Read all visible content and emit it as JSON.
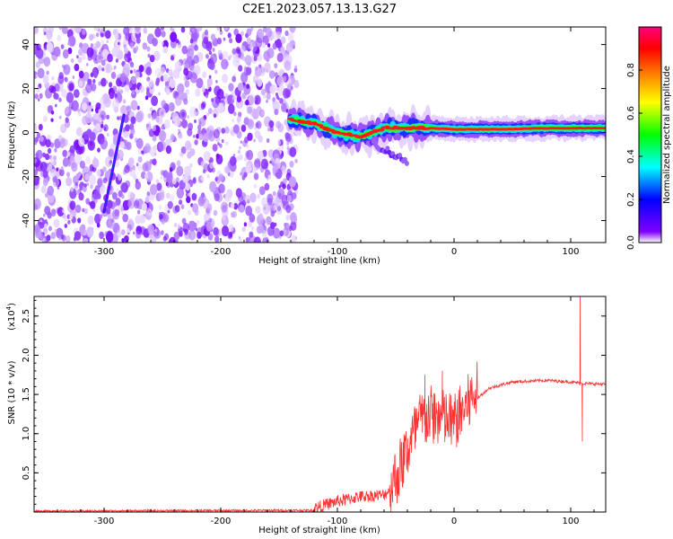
{
  "title": "C2E1.2023.057.13.13.G27",
  "chart_data": [
    {
      "type": "heatmap",
      "xlabel": "Height of straight line (km)",
      "ylabel": "Frequency (Hz)",
      "xlim": [
        -360,
        130
      ],
      "ylim": [
        -50,
        48
      ],
      "x_ticks": [
        -300,
        -200,
        -100,
        0,
        100
      ],
      "y_ticks": [
        -40,
        -20,
        0,
        20,
        40
      ],
      "colorbar": {
        "label": "Normalized spectral amplitude",
        "range": [
          0,
          1
        ],
        "ticks": [
          "0.0",
          "0.2",
          "0.4",
          "0.6",
          "0.8"
        ],
        "colors": [
          "#ffffff",
          "#8000ff",
          "#0000ff",
          "#00ffff",
          "#00ff00",
          "#ffff00",
          "#ff8000",
          "#ff0000",
          "#ff0080"
        ]
      },
      "noise_region_x": [
        -360,
        -135
      ],
      "carrier_track": [
        {
          "x": -140,
          "y": 6
        },
        {
          "x": -120,
          "y": 4
        },
        {
          "x": -100,
          "y": 0
        },
        {
          "x": -80,
          "y": -2
        },
        {
          "x": -60,
          "y": 2
        },
        {
          "x": -40,
          "y": 2
        },
        {
          "x": -20,
          "y": 2
        },
        {
          "x": 0,
          "y": 1.5
        },
        {
          "x": 40,
          "y": 1.5
        },
        {
          "x": 80,
          "y": 2
        },
        {
          "x": 130,
          "y": 2
        }
      ],
      "streak": {
        "x": [
          -300,
          -283
        ],
        "y": [
          -36,
          8
        ]
      },
      "grid": false
    },
    {
      "type": "line",
      "xlabel": "Height of straight line (km)",
      "ylabel": "SNR (10 * v/v)",
      "y_multiplier": "(x10",
      "y_multiplier_exp": "4",
      "xlim": [
        -360,
        130
      ],
      "ylim": [
        0,
        2.75
      ],
      "x_ticks": [
        -300,
        -200,
        -100,
        0,
        100
      ],
      "y_ticks": [
        "0.5",
        "1.0",
        "1.5",
        "2.0",
        "2.5"
      ],
      "color": "#ff3333",
      "series_envelope": [
        {
          "x": -360,
          "y": 0.02
        },
        {
          "x": -120,
          "y": 0.03
        },
        {
          "x": -100,
          "y": 0.12
        },
        {
          "x": -80,
          "y": 0.18
        },
        {
          "x": -60,
          "y": 0.2
        },
        {
          "x": -50,
          "y": 0.35
        },
        {
          "x": -40,
          "y": 0.7
        },
        {
          "x": -30,
          "y": 1.05
        },
        {
          "x": -20,
          "y": 1.15
        },
        {
          "x": -10,
          "y": 1.1
        },
        {
          "x": 0,
          "y": 1.05
        },
        {
          "x": 10,
          "y": 1.25
        },
        {
          "x": 20,
          "y": 1.45
        },
        {
          "x": 30,
          "y": 1.58
        },
        {
          "x": 50,
          "y": 1.66
        },
        {
          "x": 80,
          "y": 1.68
        },
        {
          "x": 100,
          "y": 1.66
        },
        {
          "x": 110,
          "y": 1.64
        },
        {
          "x": 130,
          "y": 1.63
        }
      ],
      "spikes": [
        {
          "x": -25,
          "y": 1.75
        },
        {
          "x": -10,
          "y": 1.8
        },
        {
          "x": 13,
          "y": 1.55
        },
        {
          "x": 108,
          "y": 2.75
        },
        {
          "x": 110,
          "y": 0.9
        }
      ],
      "grid": false
    }
  ]
}
